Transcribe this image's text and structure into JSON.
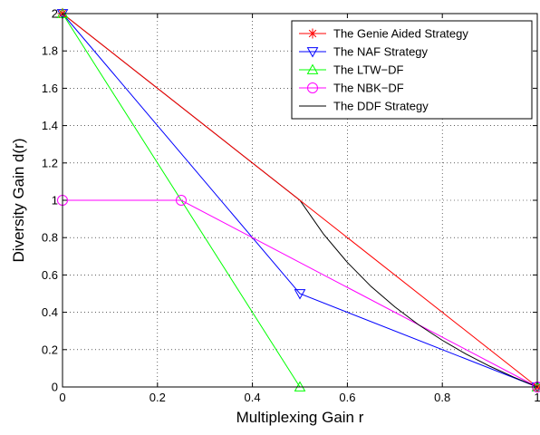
{
  "chart_data": {
    "type": "line",
    "xlabel": "Multiplexing Gain r",
    "ylabel": "Diversity Gain d(r)",
    "xlim": [
      0,
      1
    ],
    "ylim": [
      0,
      2
    ],
    "x_ticks": [
      0,
      0.2,
      0.4,
      0.6,
      0.8,
      1
    ],
    "y_ticks": [
      0,
      0.2,
      0.4,
      0.6,
      0.8,
      1,
      1.2,
      1.4,
      1.6,
      1.8,
      2
    ],
    "x_tick_labels": [
      "0",
      "0.2",
      "0.4",
      "0.6",
      "0.8",
      "1"
    ],
    "y_tick_labels": [
      "0",
      "0.2",
      "0.4",
      "0.6",
      "0.8",
      "1",
      "1.2",
      "1.4",
      "1.6",
      "1.8",
      "2"
    ],
    "grid": true,
    "legend_position": "top-right",
    "series": [
      {
        "name": "The Genie Aided Strategy",
        "color": "#ff0000",
        "marker": "star",
        "x": [
          0,
          0.5,
          1
        ],
        "y": [
          2,
          1,
          0
        ],
        "marker_x": [
          0,
          1
        ],
        "marker_y": [
          2,
          0
        ]
      },
      {
        "name": "The NAF Strategy",
        "color": "#0000ff",
        "marker": "triangle-down",
        "x": [
          0,
          0.5,
          1
        ],
        "y": [
          2,
          0.5,
          0
        ],
        "marker_x": [
          0,
          0.5,
          1
        ],
        "marker_y": [
          2,
          0.5,
          0
        ]
      },
      {
        "name": "The LTW−DF",
        "color": "#00ff00",
        "marker": "triangle-up",
        "x": [
          0,
          0.5,
          1
        ],
        "y": [
          2,
          0,
          0
        ],
        "marker_x": [
          0,
          0.5,
          1
        ],
        "marker_y": [
          2,
          0,
          0
        ]
      },
      {
        "name": "The NBK−DF",
        "color": "#ff00ff",
        "marker": "circle",
        "x": [
          0,
          0.25,
          1
        ],
        "y": [
          1,
          1,
          0
        ],
        "marker_x": [
          0,
          0.25,
          1
        ],
        "marker_y": [
          1,
          1,
          0
        ]
      },
      {
        "name": "The DDF Strategy",
        "color": "#000000",
        "marker": "none",
        "x": [
          0,
          0.5,
          0.55,
          0.6,
          0.65,
          0.7,
          0.75,
          0.8,
          0.85,
          0.9,
          0.95,
          1
        ],
        "y": [
          2,
          1,
          0.818,
          0.667,
          0.538,
          0.429,
          0.333,
          0.25,
          0.176,
          0.111,
          0.053,
          0
        ]
      }
    ]
  }
}
